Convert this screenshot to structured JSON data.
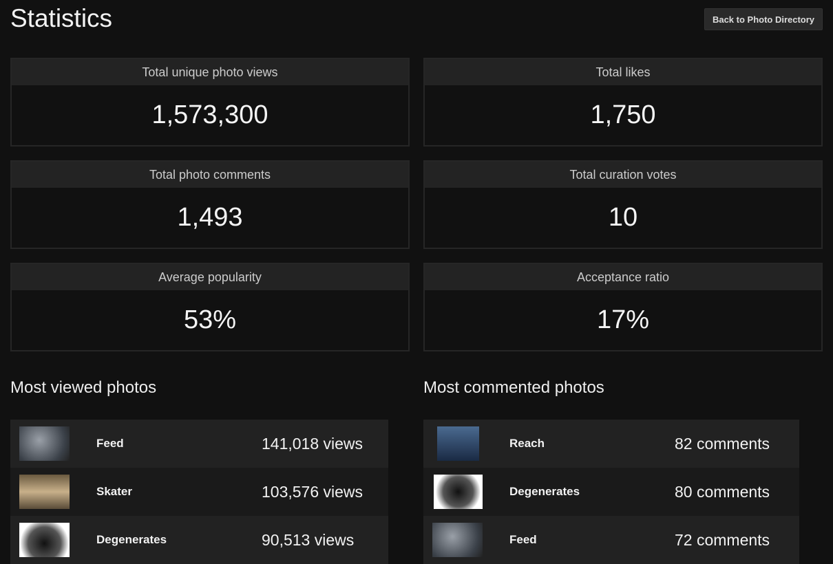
{
  "page": {
    "title": "Statistics",
    "back_button": "Back to Photo Directory"
  },
  "stats": [
    {
      "label": "Total unique photo views",
      "value": "1,573,300"
    },
    {
      "label": "Total likes",
      "value": "1,750"
    },
    {
      "label": "Total photo comments",
      "value": "1,493"
    },
    {
      "label": "Total curation votes",
      "value": "10"
    },
    {
      "label": "Average popularity",
      "value": "53%"
    },
    {
      "label": "Acceptance ratio",
      "value": "17%"
    }
  ],
  "most_viewed": {
    "heading": "Most viewed photos",
    "items": [
      {
        "name": "Feed",
        "count": "141,018 views"
      },
      {
        "name": "Skater",
        "count": "103,576 views"
      },
      {
        "name": "Degenerates",
        "count": "90,513 views"
      }
    ]
  },
  "most_commented": {
    "heading": "Most commented photos",
    "items": [
      {
        "name": "Reach",
        "count": "82 comments"
      },
      {
        "name": "Degenerates",
        "count": "80 comments"
      },
      {
        "name": "Feed",
        "count": "72 comments"
      }
    ]
  }
}
